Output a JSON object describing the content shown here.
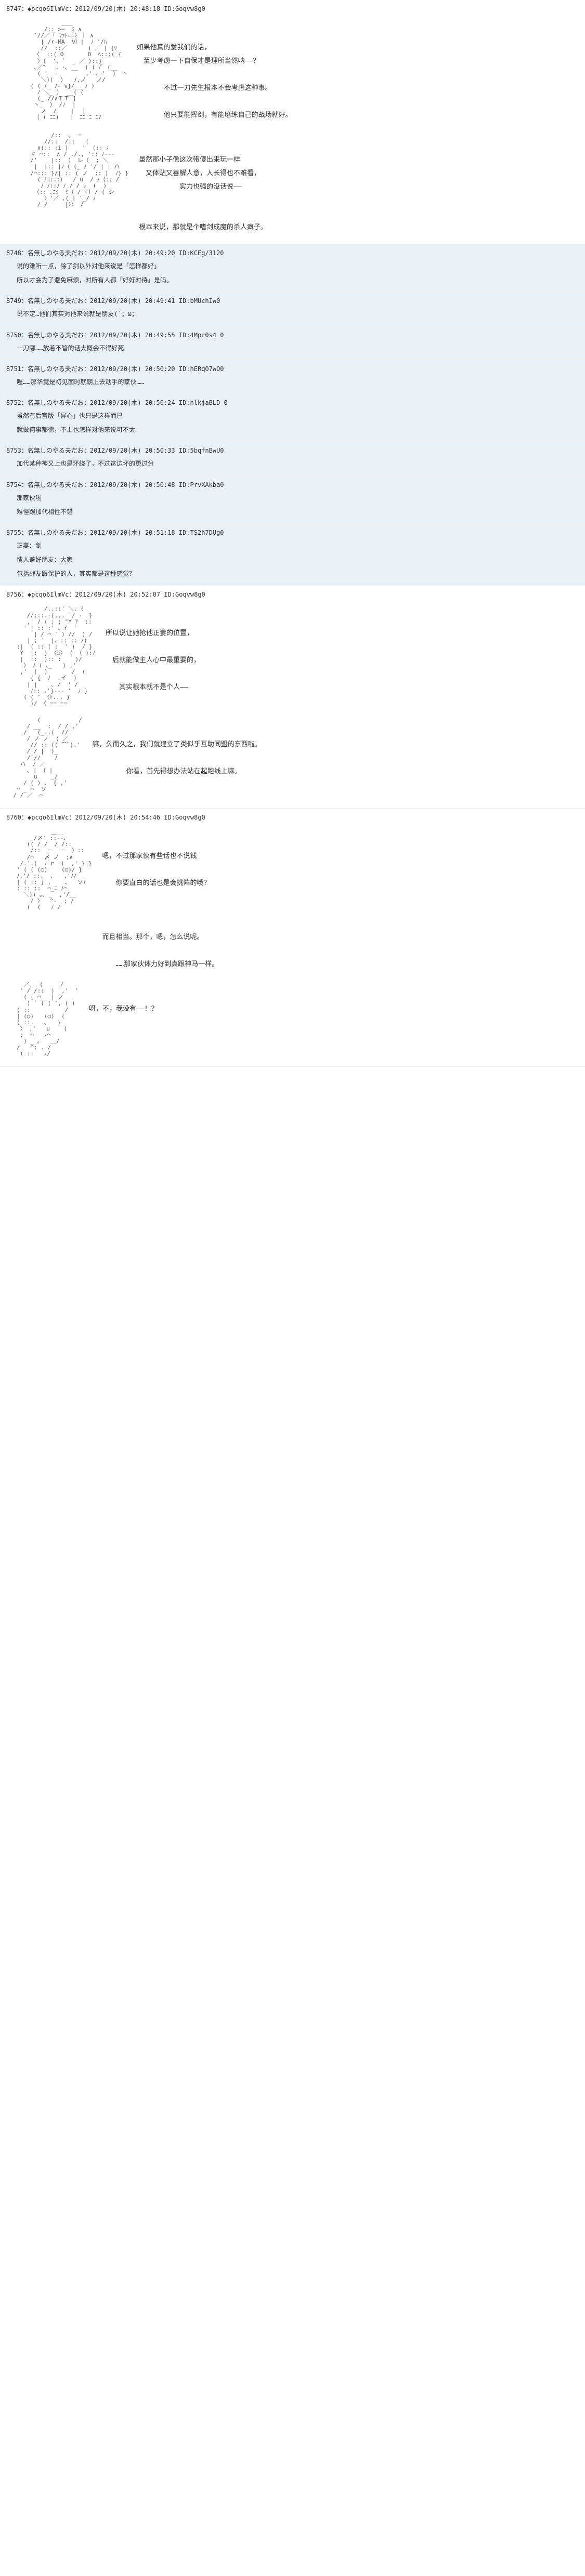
{
  "posts": [
    {
      "id": "8747",
      "header": "8747：◆pcqo6IlmVc：2012/09/20(木) 20:48:18 ID:Goqvw8g0",
      "type": "main",
      "ascii1": "                ＿＿\n           /:: >─  ﾐ ∧\n        ′//／「 ﾌｧﾄ==ﾐ ｜ ∧\n          | /r-MA  Ⅵ |  ﾉ '/ﾊ\n          //  ::／      ) ／ | {ﾘ\n        〈  ::( O       O  ﾍ:::( {\n         〉（  '、`  _ ／ )::}\n        ､／^   、･､ __  ) ( /ﾞ (__\n         ( '  =        ,'=､='  )  ⌒\n          ＼)(  )   ﾉ,ノ   ノ/\n       ( ( (_ ﾉ- v}/___ﾉ )\n         ﾉ ＼_ )  __( (\n         (_ //∧ＴＴ ]\n        丶_  〉 /ﾉ  |\n          ノ  /    |  ｜\n        （ ( ﾆﾆ)   |  ﾆﾆ ﾆ ﾆ7",
      "dialogue1": [
        "如果他真的爱我们的话，",
        "　至少考虑一下自保才是理所当然呐——？",
        "",
        "　　　　不过一刀先生根本不会考虑这种事。",
        "",
        "　　　　他只要能挥剑，有能磨练自己的战场就好。"
      ],
      "ascii2": "             /::  ､  =\n           //::  /::   (\n         ∧(:: :i )    '  (:: ﾉ\n       ∥ ⌒::  ∧ / ./., ':: ﾉ---\n       /'    |:: （  レ（  ; ＼\n        |  |:: |ﾉ（ (_ ﾉ '/ | | ハ\n       /⌒::: }/| :: ( ノ  :: )  ﾉ} }\n         ( 川:::）  / u  / ﾉ（:: /\n          ﾉ ﾉ::ﾉ ﾉ / / ﾚ  (  )\n        〈:: ､ﾆﾐ  ﾐ（ / TT / ( シ\n           〉'／ ､( | '_/ ﾉ\n         / /     |〉〉 /",
      "dialogue2": [
        "虽然那小子像这次带傻出来玩一样",
        "　又体贴又善解人意，人长得也不难看，",
        "　　　　　　实力也强的没话说——",
        "",
        "",
        "根本来说，那就是个嗜剑成魔的杀人疯子。"
      ]
    },
    {
      "id": "8748",
      "header": "8748：名無しのやる夫だお：2012/09/20(木) 20:49:20 ID:KCEg/3120",
      "type": "reply",
      "lines": [
        "说的难听一点，除了剑以外对他来说是「怎样都好」",
        "所以才会为了避免麻烦，对所有人都「好好对待」是吗。"
      ]
    },
    {
      "id": "8749",
      "header": "8749：名無しのやる夫だお：2012/09/20(木) 20:49:41 ID:bMUchIw0",
      "type": "reply",
      "lines": [
        "说不定…他们其实对他来说就是朋友(´；ω；"
      ]
    },
    {
      "id": "8750",
      "header": "8750：名無しのやる夫だお：2012/09/20(木) 20:49:55 ID:4Mpr0s4 0",
      "type": "reply",
      "lines": [
        "一刀哪……放着不管的话大概会不得好死"
      ]
    },
    {
      "id": "8751",
      "header": "8751：名無しのやる夫だお：2012/09/20(木) 20:50:20 ID:hERqO7wO0",
      "type": "reply",
      "lines": [
        "喔……那华竟是初见面时就朝上去动手的家伙……"
      ]
    },
    {
      "id": "8752",
      "header": "8752：名無しのやる夫だお：2012/09/20(木) 20:50:24 ID:nlkjaBLD 0",
      "type": "reply",
      "lines": [
        "虽然有后宫版「异心」也只是这样而已",
        "就做何事都德，不上也怎样对他来说可不太"
      ]
    },
    {
      "id": "8753",
      "header": "8753：名無しのやる夫だお：2012/09/20(木) 20:50:33 ID:5bqfnBwU0",
      "type": "reply",
      "lines": [
        "加代某种神又上也是环绕了，不过这边坏的更过分"
      ]
    },
    {
      "id": "8754",
      "header": "8754：名無しのやる夫だお：2012/09/20(木) 20:50:48 ID:PrvXAkba0",
      "type": "reply",
      "lines": [
        "那家伙啦",
        "难怪跟加代相性不错"
      ]
    },
    {
      "id": "8755",
      "header": "8755：名無しのやる夫だお：2012/09/20(木) 20:51:18 ID:TS2h7DUg0",
      "type": "reply",
      "lines": [
        "正妻：剑",
        "情人兼好朋友：大家",
        "包括战友跟保护的人，其实都是这种感觉？"
      ]
    },
    {
      "id": "8756",
      "header": "8756：◆pcqo6IlmVc：2012/09/20(木) 20:52:07 ID:Goqvw8g0",
      "type": "main",
      "ascii1": "           /..::' ＼. ﾐ\n      //:::.-(,.. '/ -  }\n      ,' / ( ; ; \"Y ｱ  ::\n     ′ | :: :' ､ ｲ  ′\n        | / ⌒ ′ ) //  ) /\n      | ; ′  |、:: :: ﾉ)\n   :|  ( :: ( ;  ' )  / }\n    Y  |:  } 〈○〉 ( （ ):ﾉ\n    |  ::  ):: :    )/\n     〉 ﾉ ( ､_   ) ,'\n    ,'  (  )       /  (\n       { {  ﾉ  .イ  )\n      | |    ､ /  ' /\n       ﾉ:: ,'}--- '  ﾉ }\n     ( ( ' 〈ﾄ... }\n       )/ 〈 == ==",
      "dialogue1": [
        "所以说让她抢他正妻的位置，",
        "",
        "　后就能做主人心中最重要的，",
        "",
        "　　其实根本就不是个人——"
      ],
      "ascii2": "         (           /\n      / __  :  / / ,'\n     /   (_..(  //\n      / ノ ノ  ( ／\n       // :: (( ⌒ﾟ).'\n      /'/ |  )_\n      /'//    ﾉ\n    ハ  / ／\n      ､ | （ |\n        u    _/\n     / ( ) 、 { ,'\n   ⌒ _ ⌒  ソ\n  / / ／  ⌒",
      "dialogue2": [
        "嘛，久而久之，我们就建立了类似乎互助同盟的东西啦。",
        "",
        "　　　　　你看，首先得想办法站在起跑线上嘛。"
      ]
    },
    {
      "id": "8760",
      "header": "8760：◆pcqo6IlmVc：2012/09/20(木) 20:54:46 ID:Goqvw8g0",
      "type": "main",
      "ascii1": "             ＿__\n        /〆' ::--､\n      (( / /  / /:: \n       /::  =   =  〉::\n      /⌒   〆 ノ  ;∧\n    /.'.(  ﾉ r ')  ,' } }\n   ' ( ( (○)    (○)/ }\n   ﾉ,'/ ::.  ､   ,'ﾉ/\n   | ( :: j ,    、  ソ(\n   : :: ::  ⌒_ﾆ ﾉ⌒\n     ＼)) ｡､ _  ,'/__\n       / 〉  ^-  ; /\n      (  (   ﾉ /",
      "dialogue1": [
        "嗯，不过那家伙有些话也不说钱",
        "",
        "　　你要直白的话也是会挑阵的哦？",
        "",
        "",
        "",
        "而且相当。那个，嗯，怎么说呢。",
        "",
        "　　……那家伙体力好到真跟神马一样。"
      ],
      "ascii2": "     ／,  (     /  \n    ' / /::  )  ,'  '\n     ( [ ⌒__ | ノ\n      ) ´ ( ( ', ( )\n   ( ::          /\n   | (○)   (○)  (\n   ( ::.   ､   )\n    〉 ,'   u    (\n    ;  ⌒_  ﾉ⌒\n     ) _ ｡   ＿/\n   /   ^: . /\n    ( ::   ﾉ/",
      "dialogue2": [
        "呀，不，我没有——！？"
      ]
    }
  ]
}
